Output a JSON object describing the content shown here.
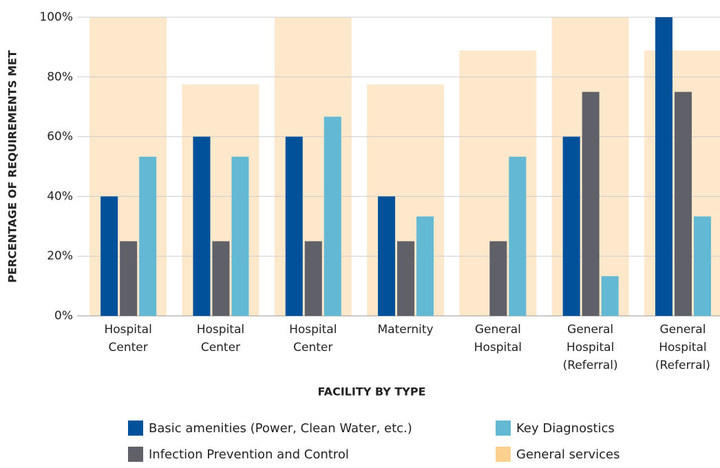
{
  "chart_data": {
    "type": "bar",
    "x_label": "FACILITY BY TYPE",
    "y_label": "PERCENTAGE OF REQUIREMENTS MET",
    "categories": [
      "Hospital Center",
      "Hospital Center",
      "Hospital Center",
      "Maternity",
      "General Hospital",
      "General Hospital (Referral)",
      "General Hospital (Referral)"
    ],
    "series": [
      {
        "name": "Basic amenities (Power, Clean Water, etc.)",
        "color": "#00509a",
        "values": [
          40,
          60,
          60,
          40,
          0,
          60,
          100
        ]
      },
      {
        "name": "Infection Prevention and Control",
        "color": "#5f6068",
        "values": [
          25,
          25,
          25,
          25,
          25,
          75,
          75
        ]
      },
      {
        "name": "Key Diagnostics",
        "color": "#63b8d3",
        "values": [
          53.3,
          53.3,
          66.7,
          33.3,
          53.3,
          13.3,
          33.3
        ]
      },
      {
        "name": "General services",
        "color": "#fde8cc",
        "values": [
          100,
          77.5,
          100,
          77.5,
          88.9,
          100,
          88.9
        ]
      }
    ],
    "ylim": [
      0,
      100
    ],
    "yticks": [
      {
        "value": 0,
        "label": "0%"
      },
      {
        "value": 20,
        "label": "20%"
      },
      {
        "value": 40,
        "label": "40%"
      },
      {
        "value": 60,
        "label": "60%"
      },
      {
        "value": 80,
        "label": "80%"
      },
      {
        "value": 100,
        "label": "100%"
      }
    ],
    "grid": true
  }
}
